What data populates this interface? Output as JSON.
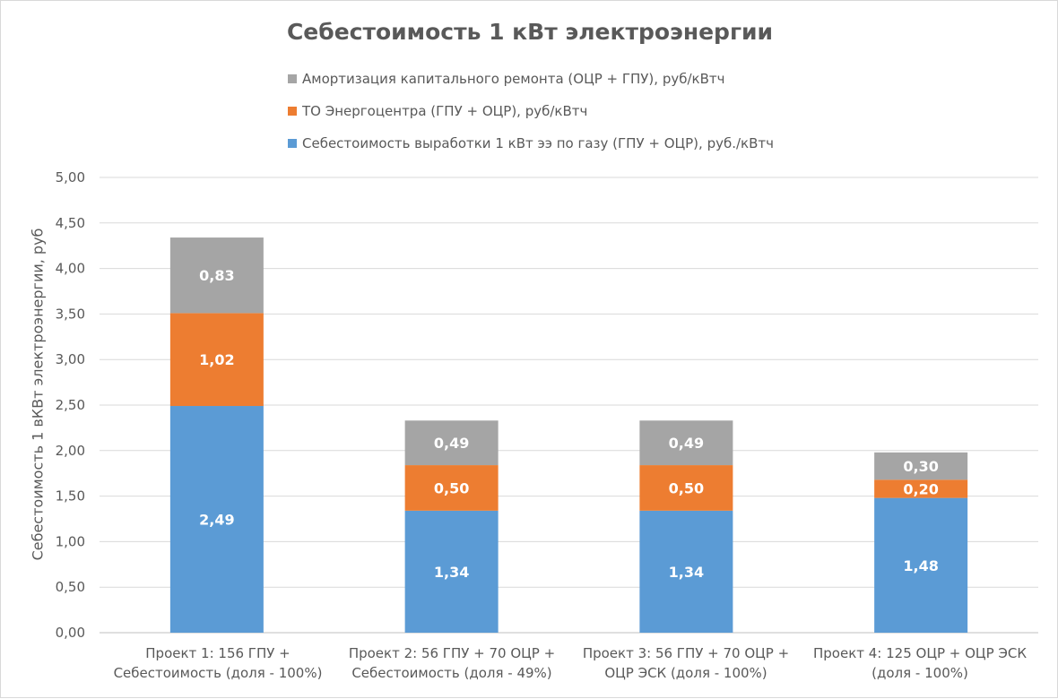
{
  "chart_data": {
    "type": "bar",
    "stacked": true,
    "title": "Себестоимость 1 кВт электроэнергии",
    "ylabel": "Себестоимость 1 вКВт электроэнергии, руб",
    "xlabel": "",
    "ylim": [
      0,
      5
    ],
    "ytick_step": 0.5,
    "ytick_labels": [
      "0,00",
      "0,50",
      "1,00",
      "1,50",
      "2,00",
      "2,50",
      "3,00",
      "3,50",
      "4,00",
      "4,50",
      "5,00"
    ],
    "grid": true,
    "legend_position": "top",
    "categories": [
      [
        "Проект 1: 156 ГПУ +",
        "Себестоимость (доля - 100%)"
      ],
      [
        "Проект 2: 56 ГПУ + 70 ОЦР +",
        "Себестоимость (доля - 49%)"
      ],
      [
        "Проект 3: 56 ГПУ + 70 ОЦР +",
        "ОЦР ЭСК (доля - 100%)"
      ],
      [
        "Проект 4: 125 ОЦР + ОЦР ЭСК",
        "(доля - 100%)"
      ]
    ],
    "series": [
      {
        "name": "Себестоимость выработки 1 кВт ээ по газу (ГПУ + ОЦР), руб./кВтч",
        "color": "#5b9bd5",
        "values": [
          2.49,
          1.34,
          1.34,
          1.48
        ],
        "labels": [
          "2,49",
          "1,34",
          "1,34",
          "1,48"
        ]
      },
      {
        "name": "ТО Энергоцентра (ГПУ + ОЦР), руб/кВтч",
        "color": "#ed7d31",
        "values": [
          1.02,
          0.5,
          0.5,
          0.2
        ],
        "labels": [
          "1,02",
          "0,50",
          "0,50",
          "0,20"
        ]
      },
      {
        "name": "Амортизация капитального ремонта (ОЦР + ГПУ), руб/кВтч",
        "color": "#a5a5a5",
        "values": [
          0.83,
          0.49,
          0.49,
          0.3
        ],
        "labels": [
          "0,83",
          "0,49",
          "0,49",
          "0,30"
        ]
      }
    ]
  }
}
